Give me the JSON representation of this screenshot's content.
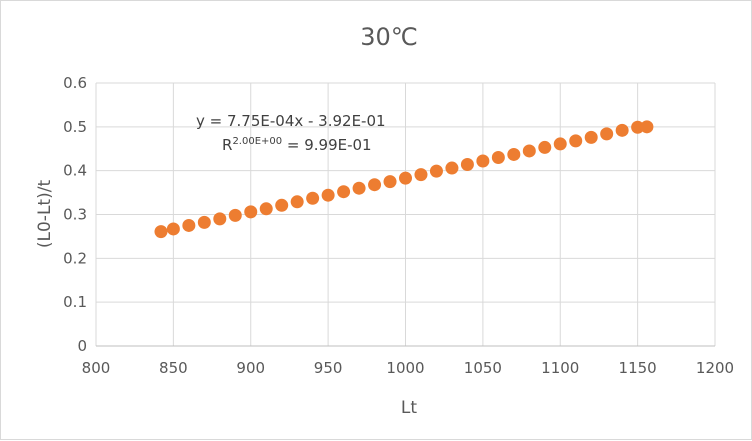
{
  "chart_data": {
    "type": "scatter",
    "title": "30℃",
    "xlabel": "Lt",
    "ylabel": "(L0-Lt)/t",
    "xlim": [
      800,
      1200
    ],
    "ylim": [
      0,
      0.6
    ],
    "xticks": [
      800,
      850,
      900,
      950,
      1000,
      1050,
      1100,
      1150,
      1200
    ],
    "yticks": [
      0,
      0.1,
      0.2,
      0.3,
      0.4,
      0.5,
      0.6
    ],
    "xtick_labels": [
      "800",
      "850",
      "900",
      "950",
      "1000",
      "1050",
      "1100",
      "1150",
      "1200"
    ],
    "ytick_labels": [
      "0",
      "0.1",
      "0.2",
      "0.3",
      "0.4",
      "0.5",
      "0.6"
    ],
    "grid": true,
    "legend": "none",
    "series_color": "#ED7D31",
    "trendline": {
      "slope": 0.000775,
      "intercept": -0.392,
      "equation_text": "y = 7.75E-04x - 3.92E-01",
      "r2_prefix": "R",
      "r2_exponent": "2.00E+00",
      "r2_suffix": " = 9.99E-01"
    },
    "series": [
      {
        "x": [
          842,
          850,
          860,
          870,
          880,
          890,
          900,
          910,
          920,
          930,
          940,
          950,
          960,
          970,
          980,
          990,
          1000,
          1010,
          1020,
          1030,
          1040,
          1050,
          1060,
          1070,
          1080,
          1090,
          1100,
          1110,
          1120,
          1130,
          1140,
          1150,
          1156
        ],
        "y": [
          0.261,
          0.267,
          0.275,
          0.282,
          0.29,
          0.298,
          0.306,
          0.313,
          0.321,
          0.329,
          0.337,
          0.344,
          0.352,
          0.36,
          0.368,
          0.375,
          0.383,
          0.391,
          0.399,
          0.406,
          0.414,
          0.422,
          0.43,
          0.437,
          0.445,
          0.453,
          0.461,
          0.468,
          0.476,
          0.484,
          0.492,
          0.499,
          0.5
        ]
      }
    ]
  }
}
